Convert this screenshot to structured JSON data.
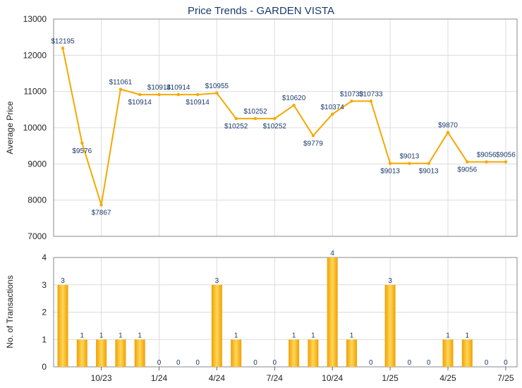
{
  "chart_data": [
    {
      "type": "line",
      "title": "Price Trends - GARDEN VISTA",
      "ylabel": "Average Price",
      "ylim": [
        7000,
        13000
      ],
      "yticks": [
        7000,
        8000,
        9000,
        10000,
        11000,
        12000,
        13000
      ],
      "grid": true,
      "line_color": "#f5a800",
      "series": [
        {
          "values": [
            12195,
            9576,
            7867,
            11061,
            10914,
            10914,
            10914,
            10914,
            10955,
            10252,
            10252,
            10252,
            10620,
            9779,
            10374,
            10733,
            10733,
            9013,
            9013,
            9013,
            9870,
            9056,
            9056,
            9056
          ],
          "labels": [
            "$12195",
            "$9576",
            "$7867",
            "$11061",
            "$10914",
            "$10914",
            "$10914",
            "$10914",
            "$10955",
            "$10252",
            "$10252",
            "$10252",
            "$10620",
            "$9779",
            "$10374",
            "$10733",
            "$10733",
            "$9013",
            "$9013",
            "$9013",
            "$9870",
            "$9056",
            "$9056",
            "$9056"
          ]
        }
      ]
    },
    {
      "type": "bar",
      "ylabel": "No. of Transactions",
      "ylim": [
        0,
        4
      ],
      "yticks": [
        0,
        1,
        2,
        3,
        4
      ],
      "grid": true,
      "bar_color": "#f5a800",
      "values": [
        3,
        1,
        1,
        1,
        1,
        0,
        0,
        0,
        3,
        1,
        0,
        0,
        1,
        1,
        4,
        1,
        0,
        3,
        0,
        0,
        1,
        1,
        0,
        0
      ],
      "labels": [
        "3",
        "1",
        "1",
        "1",
        "1",
        "0",
        "0",
        "0",
        "3",
        "1",
        "0",
        "0",
        "1",
        "1",
        "4",
        "1",
        "0",
        "3",
        "0",
        "0",
        "1",
        "1",
        "0",
        "0"
      ],
      "xticks": [
        {
          "label": "10/23",
          "index": 2
        },
        {
          "label": "1/24",
          "index": 5
        },
        {
          "label": "4/24",
          "index": 8
        },
        {
          "label": "7/24",
          "index": 11
        },
        {
          "label": "10/24",
          "index": 14
        },
        {
          "label": "1/25",
          "index": 17
        },
        {
          "label": "4/25",
          "index": 20
        },
        {
          "label": "7/25",
          "index": 23
        }
      ]
    }
  ]
}
